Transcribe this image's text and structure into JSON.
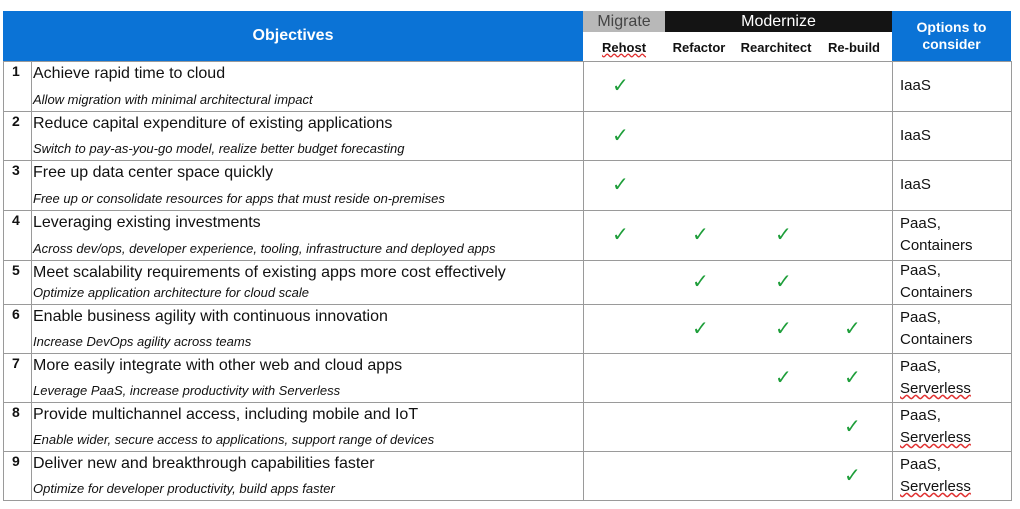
{
  "header": {
    "objectives": "Objectives",
    "migrate": "Migrate",
    "modernize": "Modernize",
    "rehost": "Rehost",
    "refactor": "Refactor",
    "rearchitect": "Rearchitect",
    "rebuild": "Re-build",
    "options_line1": "Options to",
    "options_line2": "consider"
  },
  "check_symbol": "✓",
  "check_color": "#1e9e3a",
  "accent_color": "#0b73d6",
  "rows": [
    {
      "num": "1",
      "title": "Achieve rapid time to cloud",
      "subtitle": "Allow migration with minimal architectural impact",
      "rehost": true,
      "refactor": false,
      "rearchitect": false,
      "rebuild": false,
      "options": [
        "IaaS"
      ]
    },
    {
      "num": "2",
      "title": "Reduce capital expenditure of existing applications",
      "subtitle": "Switch to pay-as-you-go model, realize better budget forecasting",
      "rehost": true,
      "refactor": false,
      "rearchitect": false,
      "rebuild": false,
      "options": [
        "IaaS"
      ]
    },
    {
      "num": "3",
      "title": "Free up data center space quickly",
      "subtitle": "Free up or consolidate resources for apps that must reside on-premises",
      "rehost": true,
      "refactor": false,
      "rearchitect": false,
      "rebuild": false,
      "options": [
        "IaaS"
      ]
    },
    {
      "num": "4",
      "title": "Leveraging existing investments",
      "subtitle": "Across dev/ops, developer experience, tooling, infrastructure and deployed apps",
      "rehost": true,
      "refactor": true,
      "rearchitect": true,
      "rebuild": false,
      "options": [
        "PaaS,",
        "Containers"
      ]
    },
    {
      "num": "5",
      "title": "Meet scalability requirements of existing apps more cost effectively",
      "subtitle": "Optimize application architecture for cloud scale",
      "rehost": false,
      "refactor": true,
      "rearchitect": true,
      "rebuild": false,
      "options": [
        "PaaS,",
        "Containers"
      ]
    },
    {
      "num": "6",
      "title": "Enable business agility with continuous innovation",
      "subtitle": "Increase DevOps agility across teams",
      "rehost": false,
      "refactor": true,
      "rearchitect": true,
      "rebuild": true,
      "options": [
        "PaaS,",
        "Containers"
      ]
    },
    {
      "num": "7",
      "title": "More easily integrate with other web and cloud apps",
      "subtitle": "Leverage PaaS, increase productivity with Serverless",
      "rehost": false,
      "refactor": false,
      "rearchitect": true,
      "rebuild": true,
      "options": [
        "PaaS,",
        "Serverless"
      ]
    },
    {
      "num": "8",
      "title": "Provide multichannel access, including mobile and IoT",
      "subtitle": "Enable wider, secure access to applications, support range of devices",
      "rehost": false,
      "refactor": false,
      "rearchitect": false,
      "rebuild": true,
      "options": [
        "PaaS,",
        "Serverless"
      ]
    },
    {
      "num": "9",
      "title": "Deliver new and breakthrough capabilities faster",
      "subtitle": "Optimize for developer productivity, build apps faster",
      "rehost": false,
      "refactor": false,
      "rearchitect": false,
      "rebuild": true,
      "options": [
        "PaaS,",
        "Serverless"
      ]
    }
  ]
}
